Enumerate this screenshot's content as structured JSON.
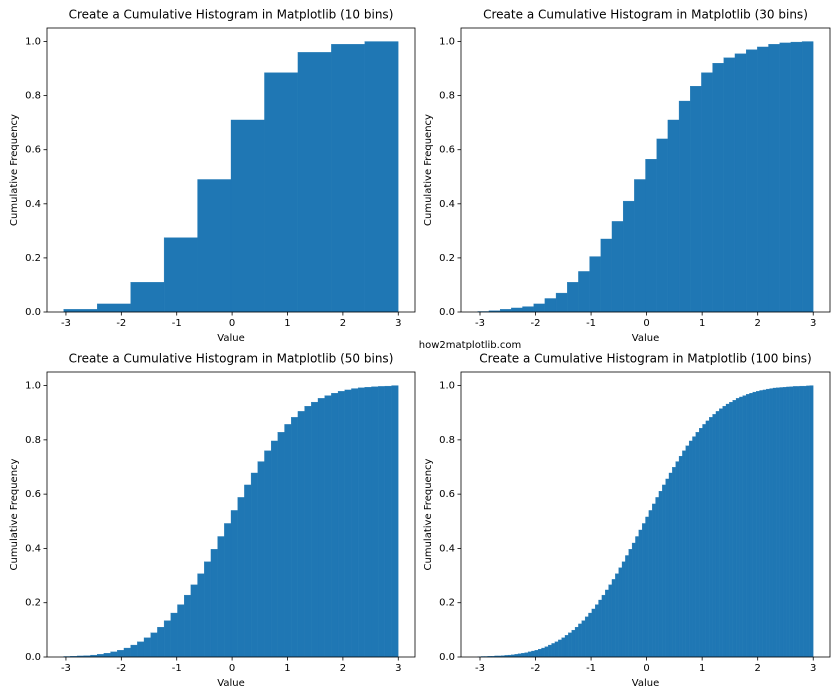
{
  "watermark": "how2matplotlib.com",
  "chart_data": [
    {
      "type": "histogram",
      "title": "Create a Cumulative Histogram in Matplotlib (10 bins)",
      "x_label": "Value",
      "y_label": "Cumulative Frequency",
      "color": "#1f77b4",
      "bins": [
        -3.04,
        -2.436,
        -1.832,
        -1.228,
        -0.624,
        -0.02,
        0.584,
        1.188,
        1.792,
        2.396,
        3.0
      ],
      "values": [
        0.01,
        0.03,
        0.11,
        0.275,
        0.49,
        0.71,
        0.885,
        0.96,
        0.99,
        1.0
      ],
      "xlim": [
        -3.342,
        3.302
      ],
      "ylim": [
        0,
        1.05
      ],
      "xticks": [
        -3,
        -2,
        -1,
        0,
        1,
        2,
        3
      ],
      "yticks": [
        {
          "value": 0,
          "label": "0.0"
        },
        0.2,
        0.4,
        0.6,
        0.8,
        {
          "value": 1,
          "label": "1.0"
        }
      ]
    },
    {
      "type": "histogram",
      "title": "Create a Cumulative Histogram in Matplotlib (30 bins)",
      "x_label": "Value",
      "y_label": "Cumulative Frequency",
      "color": "#1f77b4",
      "bins": [
        -3.04,
        -2.8387,
        -2.6373,
        -2.436,
        -2.2347,
        -2.0333,
        -1.832,
        -1.6307,
        -1.4293,
        -1.228,
        -1.0267,
        -0.8253,
        -0.624,
        -0.4227,
        -0.2213,
        -0.02,
        0.1813,
        0.3827,
        0.584,
        0.7853,
        0.9867,
        1.188,
        1.3893,
        1.5907,
        1.792,
        1.9933,
        2.1947,
        2.396,
        2.5973,
        2.7987,
        3.0
      ],
      "values": [
        0.002,
        0.005,
        0.01,
        0.015,
        0.02,
        0.03,
        0.05,
        0.07,
        0.11,
        0.15,
        0.205,
        0.27,
        0.335,
        0.41,
        0.49,
        0.565,
        0.64,
        0.71,
        0.78,
        0.835,
        0.885,
        0.92,
        0.94,
        0.955,
        0.97,
        0.98,
        0.99,
        0.995,
        0.998,
        1.0
      ],
      "xlim": [
        -3.342,
        3.302
      ],
      "ylim": [
        0,
        1.05
      ],
      "xticks": [
        -3,
        -2,
        -1,
        0,
        1,
        2,
        3
      ],
      "yticks": [
        {
          "value": 0,
          "label": "0.0"
        },
        0.2,
        0.4,
        0.6,
        0.8,
        {
          "value": 1,
          "label": "1.0"
        }
      ]
    },
    {
      "type": "histogram",
      "title": "Create a Cumulative Histogram in Matplotlib (50 bins)",
      "x_label": "Value",
      "y_label": "Cumulative Frequency",
      "color": "#1f77b4",
      "bins": [
        -3.04,
        -2.9192,
        -2.7984,
        -2.6776,
        -2.5568,
        -2.436,
        -2.3152,
        -2.1944,
        -2.0736,
        -1.9528,
        -1.832,
        -1.7112,
        -1.5904,
        -1.4696,
        -1.3488,
        -1.228,
        -1.1072,
        -0.9864,
        -0.8656,
        -0.7448,
        -0.624,
        -0.5032,
        -0.3824,
        -0.2616,
        -0.1408,
        -0.02,
        0.1008,
        0.2216,
        0.3424,
        0.4632,
        0.584,
        0.7048,
        0.8256,
        0.9464,
        1.0672,
        1.188,
        1.3088,
        1.4296,
        1.5504,
        1.6712,
        1.792,
        1.9128,
        2.0336,
        2.1544,
        2.2752,
        2.396,
        2.5168,
        2.6376,
        2.7584,
        2.8792,
        3.0
      ],
      "values": [
        0.002,
        0.003,
        0.004,
        0.005,
        0.007,
        0.01,
        0.014,
        0.019,
        0.025,
        0.033,
        0.044,
        0.056,
        0.071,
        0.089,
        0.11,
        0.134,
        0.162,
        0.193,
        0.228,
        0.266,
        0.307,
        0.351,
        0.397,
        0.444,
        0.492,
        0.54,
        0.588,
        0.634,
        0.678,
        0.72,
        0.76,
        0.796,
        0.828,
        0.857,
        0.883,
        0.905,
        0.924,
        0.939,
        0.953,
        0.963,
        0.972,
        0.979,
        0.984,
        0.989,
        0.992,
        0.994,
        0.996,
        0.997,
        0.998,
        1.0
      ],
      "xlim": [
        -3.342,
        3.302
      ],
      "ylim": [
        0,
        1.05
      ],
      "xticks": [
        -3,
        -2,
        -1,
        0,
        1,
        2,
        3
      ],
      "yticks": [
        {
          "value": 0,
          "label": "0.0"
        },
        0.2,
        0.4,
        0.6,
        0.8,
        {
          "value": 1,
          "label": "1.0"
        }
      ]
    },
    {
      "type": "histogram",
      "title": "Create a Cumulative Histogram in Matplotlib (100 bins)",
      "x_label": "Value",
      "y_label": "Cumulative Frequency",
      "color": "#1f77b4",
      "bins": [
        -3.04,
        -2.9796,
        -2.9192,
        -2.8588,
        -2.7984,
        -2.738,
        -2.6776,
        -2.6172,
        -2.5568,
        -2.4964,
        -2.436,
        -2.3756,
        -2.3152,
        -2.2548,
        -2.1944,
        -2.134,
        -2.0736,
        -2.0132,
        -1.9528,
        -1.8924,
        -1.832,
        -1.7716,
        -1.7112,
        -1.6508,
        -1.5904,
        -1.53,
        -1.4696,
        -1.4092,
        -1.3488,
        -1.2884,
        -1.228,
        -1.1676,
        -1.1072,
        -1.0468,
        -0.9864,
        -0.926,
        -0.8656,
        -0.8052,
        -0.7448,
        -0.6844,
        -0.624,
        -0.5636,
        -0.5032,
        -0.4428,
        -0.3824,
        -0.322,
        -0.2616,
        -0.2012,
        -0.1408,
        -0.0804,
        -0.02,
        0.0404,
        0.1008,
        0.1612,
        0.2216,
        0.282,
        0.3424,
        0.4028,
        0.4632,
        0.5236,
        0.584,
        0.6444,
        0.7048,
        0.7652,
        0.8256,
        0.886,
        0.9464,
        1.0068,
        1.0672,
        1.1276,
        1.188,
        1.2484,
        1.3088,
        1.3692,
        1.4296,
        1.49,
        1.5504,
        1.6108,
        1.6712,
        1.7316,
        1.792,
        1.8524,
        1.9128,
        1.9732,
        2.0336,
        2.094,
        2.1544,
        2.2148,
        2.2752,
        2.3356,
        2.396,
        2.4564,
        2.5168,
        2.5772,
        2.6376,
        2.698,
        2.7584,
        2.8188,
        2.8792,
        2.9396,
        3.0
      ],
      "values": [
        0.001,
        0.002,
        0.002,
        0.003,
        0.003,
        0.004,
        0.004,
        0.005,
        0.006,
        0.007,
        0.008,
        0.01,
        0.012,
        0.014,
        0.016,
        0.019,
        0.022,
        0.025,
        0.029,
        0.033,
        0.038,
        0.044,
        0.05,
        0.056,
        0.063,
        0.071,
        0.08,
        0.089,
        0.099,
        0.11,
        0.122,
        0.134,
        0.148,
        0.162,
        0.177,
        0.193,
        0.21,
        0.228,
        0.247,
        0.266,
        0.286,
        0.307,
        0.329,
        0.351,
        0.374,
        0.397,
        0.42,
        0.444,
        0.468,
        0.492,
        0.516,
        0.54,
        0.564,
        0.588,
        0.611,
        0.634,
        0.656,
        0.678,
        0.699,
        0.72,
        0.74,
        0.76,
        0.778,
        0.796,
        0.812,
        0.828,
        0.843,
        0.857,
        0.87,
        0.883,
        0.894,
        0.905,
        0.915,
        0.924,
        0.932,
        0.939,
        0.946,
        0.953,
        0.958,
        0.963,
        0.968,
        0.972,
        0.976,
        0.979,
        0.982,
        0.984,
        0.987,
        0.989,
        0.991,
        0.992,
        0.993,
        0.994,
        0.995,
        0.996,
        0.997,
        0.997,
        0.998,
        0.998,
        0.999,
        1.0
      ],
      "xlim": [
        -3.342,
        3.302
      ],
      "ylim": [
        0,
        1.05
      ],
      "xticks": [
        -3,
        -2,
        -1,
        0,
        1,
        2,
        3
      ],
      "yticks": [
        {
          "value": 0,
          "label": "0.0"
        },
        0.2,
        0.4,
        0.6,
        0.8,
        {
          "value": 1,
          "label": "1.0"
        }
      ]
    }
  ]
}
